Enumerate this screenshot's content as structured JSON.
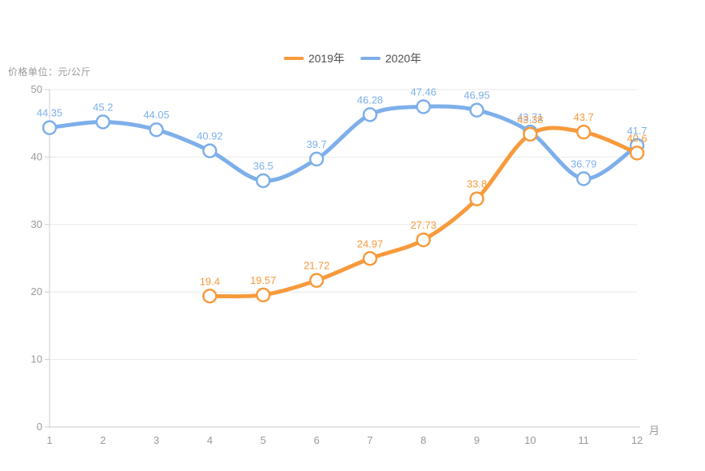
{
  "chart_data": {
    "type": "line",
    "unit_label": "价格单位：元/公斤",
    "x_axis_name": "月",
    "categories": [
      1,
      2,
      3,
      4,
      5,
      6,
      7,
      8,
      9,
      10,
      11,
      12
    ],
    "y_ticks": [
      0,
      10,
      20,
      30,
      40,
      50
    ],
    "ylim": [
      0,
      50
    ],
    "grid": true,
    "smooth": true,
    "legend_position": "top-center",
    "legend": [
      "2019年",
      "2020年"
    ],
    "series": [
      {
        "name": "2019年",
        "color": "#F79A3C",
        "values": [
          null,
          null,
          null,
          19.4,
          19.57,
          21.72,
          24.97,
          27.73,
          33.8,
          43.38,
          43.7,
          40.6
        ]
      },
      {
        "name": "2020年",
        "color": "#7DAFEA",
        "values": [
          44.35,
          45.2,
          44.05,
          40.92,
          36.5,
          39.7,
          46.28,
          47.46,
          46.95,
          43.71,
          36.79,
          41.7
        ]
      }
    ],
    "colors": {
      "background": "#ffffff",
      "axis_line": "#cccccc",
      "grid_line": "#e8e8e8",
      "tick_label": "#999999",
      "legend_text": "#4d4d4d",
      "point_fill": "#ffffff"
    }
  }
}
